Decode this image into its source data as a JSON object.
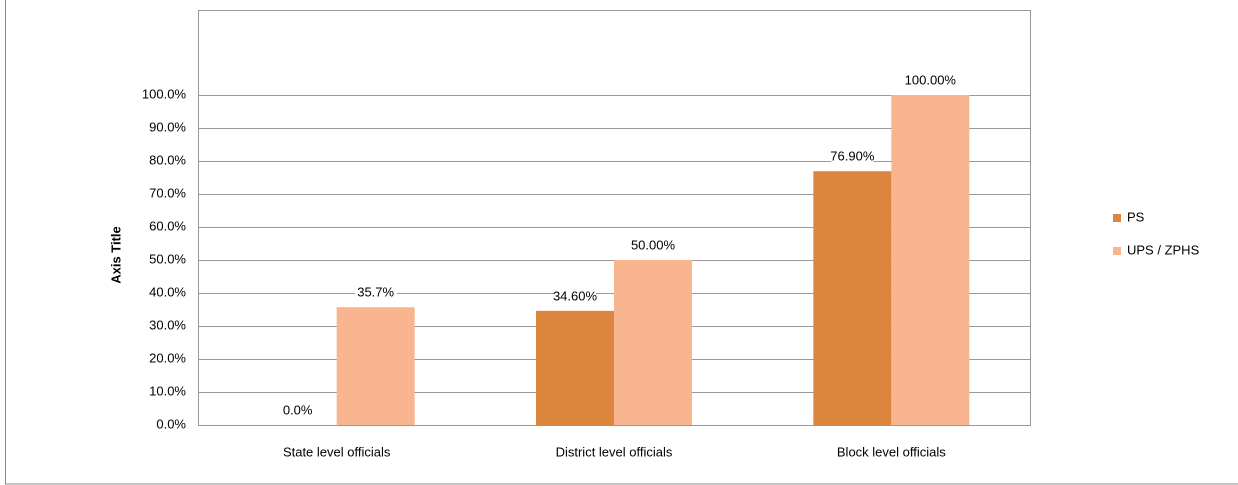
{
  "chart_data": {
    "type": "bar",
    "y_axis_title": "Axis Title",
    "categories": [
      "State level officials",
      "District  level officials",
      "Block level officials"
    ],
    "series": [
      {
        "name": "PS",
        "color": "#dc853c",
        "values": [
          0,
          34.6,
          76.9
        ],
        "value_labels": [
          "0.0%",
          "34.60%",
          "76.90%"
        ]
      },
      {
        "name": "UPS / ZPHS",
        "color": "#f9b590",
        "values": [
          35.7,
          50,
          100
        ],
        "value_labels": [
          "35.7%",
          "50.00%",
          "100.00%"
        ]
      }
    ],
    "ylim": [
      0,
      100
    ],
    "yticks": [
      {
        "value": 0,
        "label": "0.0%"
      },
      {
        "value": 10,
        "label": "10.0%"
      },
      {
        "value": 20,
        "label": "20.0%"
      },
      {
        "value": 30,
        "label": "30.0%"
      },
      {
        "value": 40,
        "label": "40.0%"
      },
      {
        "value": 50,
        "label": "50.0%"
      },
      {
        "value": 60,
        "label": "60.0%"
      },
      {
        "value": 70,
        "label": "70.0%"
      },
      {
        "value": 80,
        "label": "80.0%"
      },
      {
        "value": 90,
        "label": "90.0%"
      },
      {
        "value": 100,
        "label": "100.0%"
      }
    ],
    "grid": true,
    "legend": "right"
  }
}
